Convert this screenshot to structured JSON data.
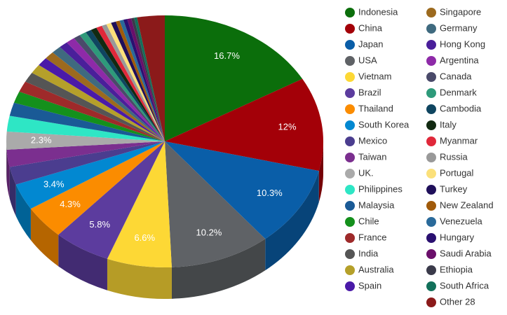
{
  "chart_data": {
    "type": "pie3d",
    "categories": [
      "Indonesia",
      "China",
      "Japan",
      "USA",
      "Vietnam",
      "Brazil",
      "Thailand",
      "South Korea",
      "Mexico",
      "Taiwan",
      "UK.",
      "Philippines",
      "Malaysia",
      "Chile",
      "France",
      "India",
      "Australia",
      "Spain",
      "Singapore",
      "Germany",
      "Hong Kong",
      "Argentina",
      "Canada",
      "Denmark",
      "Cambodia",
      "Italy",
      "Myanmar",
      "Russia",
      "Portugal",
      "Turkey",
      "New Zealand",
      "Venezuela",
      "Hungary",
      "Saudi Arabia",
      "Ethiopia",
      "South Africa",
      "Other 28"
    ],
    "values": [
      16.7,
      12,
      10.3,
      10.2,
      6.6,
      5.8,
      4.3,
      3.4,
      2.3,
      2.2,
      2.3,
      2.0,
      1.7,
      1.5,
      1.4,
      1.3,
      1.2,
      1.1,
      1.0,
      1.0,
      0.9,
      0.9,
      0.7,
      0.7,
      0.6,
      0.6,
      0.6,
      0.5,
      0.5,
      0.5,
      0.4,
      0.4,
      0.4,
      0.4,
      0.3,
      0.3,
      2.8
    ],
    "value_labels": [
      "16.7%",
      "12%",
      "10.3%",
      "10.2%",
      "6.6%",
      "5.8%",
      "4.3%",
      "3.4%",
      null,
      null,
      "2.3%",
      null,
      null,
      null,
      null,
      null,
      null,
      null,
      null,
      null,
      null,
      null,
      null,
      null,
      null,
      null,
      null,
      null,
      null,
      null,
      null,
      null,
      null,
      null,
      null,
      null,
      null
    ],
    "colors": [
      "#0b6e0b",
      "#a30008",
      "#0a5ea8",
      "#5f6266",
      "#fdd835",
      "#5c3c9e",
      "#fb8c00",
      "#0288d1",
      "#4b3d8f",
      "#7b2f8f",
      "#aaaaaa",
      "#2ee6c5",
      "#1a5a96",
      "#14901c",
      "#9e2a2a",
      "#555555",
      "#b5a02a",
      "#4a1aa8",
      "#9c6a1e",
      "#3f6a7f",
      "#4a1f9a",
      "#8e2aa8",
      "#4a4a6a",
      "#2e9a7a",
      "#0f4560",
      "#122a12",
      "#e0283a",
      "#999999",
      "#fbe07a",
      "#1f0f5a",
      "#a05a0a",
      "#2a6a9a",
      "#2a1070",
      "#6a0f6a",
      "#3a3a4a",
      "#12705a",
      "#8b1a1a"
    ]
  }
}
